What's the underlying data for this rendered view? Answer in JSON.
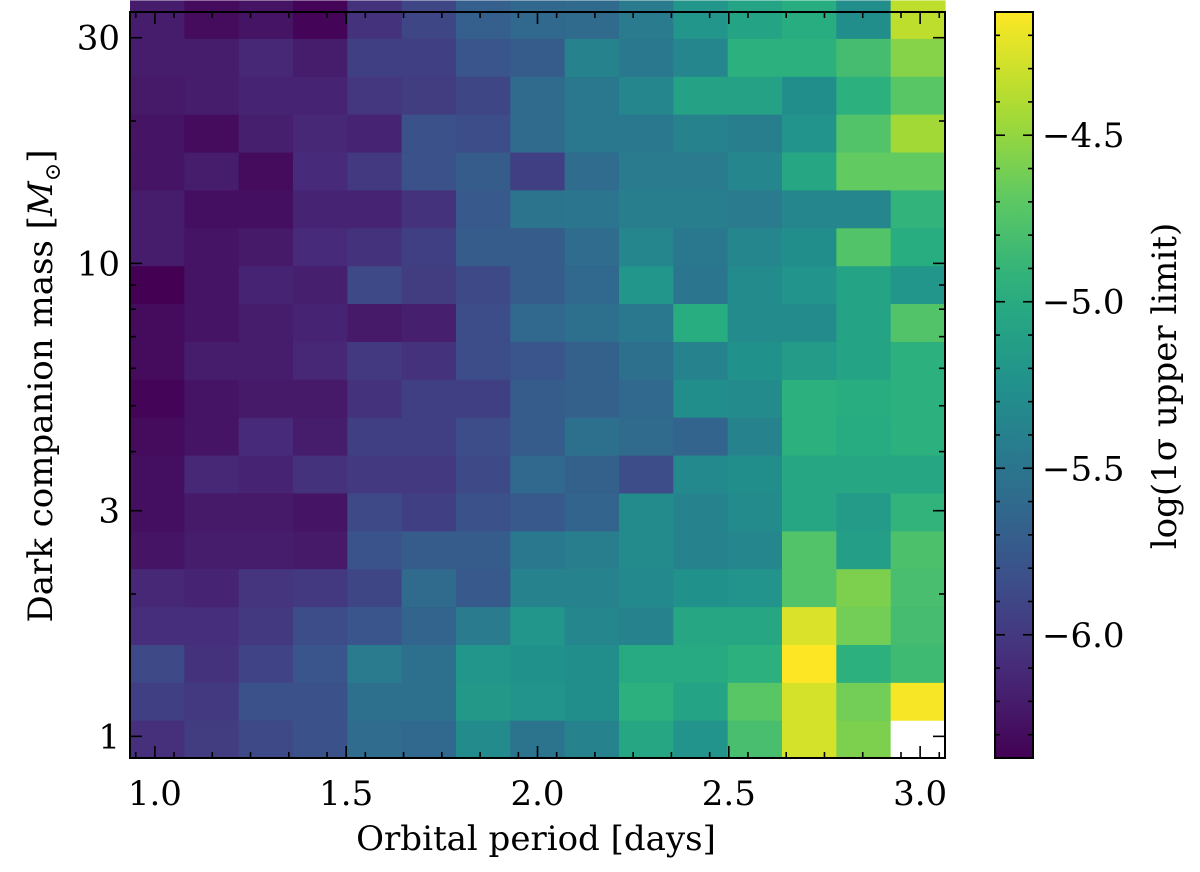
{
  "chart_data": {
    "type": "heatmap",
    "xlabel": "Orbital period [days]",
    "ylabel": "Dark companion mass [",
    "ylabel_symbol": "M",
    "ylabel_subscript": "⊙",
    "ylabel_suffix": "]",
    "colorbar_label": "log(1σ upper limit)",
    "colormap": "viridis",
    "x_scale": "linear",
    "y_scale": "log",
    "xlim": [
      0.935,
      3.065
    ],
    "ylim": [
      0.9,
      34
    ],
    "x_ticks": [
      {
        "value": 1.0,
        "label": "1.0"
      },
      {
        "value": 1.5,
        "label": "1.5"
      },
      {
        "value": 2.0,
        "label": "2.0"
      },
      {
        "value": 2.5,
        "label": "2.5"
      },
      {
        "value": 3.0,
        "label": "3.0"
      }
    ],
    "y_ticks": [
      {
        "value": 1,
        "label": "1"
      },
      {
        "value": 3,
        "label": "3"
      },
      {
        "value": 10,
        "label": "10"
      },
      {
        "value": 30,
        "label": "30"
      }
    ],
    "colorbar_range": [
      -6.37,
      -4.13
    ],
    "colorbar_ticks": [
      {
        "value": -4.5,
        "label": "−4.5"
      },
      {
        "value": -5.0,
        "label": "−5.0"
      },
      {
        "value": -5.5,
        "label": "−5.5"
      },
      {
        "value": -6.0,
        "label": "−6.0"
      }
    ],
    "x_bin_edges": [
      0.935,
      1.077,
      1.219,
      1.361,
      1.503,
      1.645,
      1.787,
      1.929,
      2.071,
      2.213,
      2.355,
      2.497,
      2.639,
      2.781,
      2.923,
      3.065
    ],
    "y_bin_edges_log10": [
      -0.0458,
      0.0343,
      0.1144,
      0.1945,
      0.2746,
      0.3547,
      0.4347,
      0.5148,
      0.5949,
      0.675,
      0.7551,
      0.8352,
      0.9153,
      0.9954,
      1.0755,
      1.1556,
      1.2356,
      1.3157,
      1.3958,
      1.4759,
      1.556
    ],
    "values_rows_bottom_to_top": [
      [
        -6.07,
        -5.98,
        -5.88,
        -5.82,
        -5.58,
        -5.62,
        -5.3,
        -5.52,
        -5.38,
        -5.05,
        -5.22,
        -4.8,
        -4.27,
        -4.58,
        null
      ],
      [
        -5.95,
        -6.0,
        -5.82,
        -5.82,
        -5.55,
        -5.55,
        -5.18,
        -5.22,
        -5.28,
        -4.95,
        -5.08,
        -4.72,
        -4.27,
        -4.62,
        -4.15
      ],
      [
        -5.88,
        -6.05,
        -5.92,
        -5.78,
        -5.45,
        -5.55,
        -5.2,
        -5.25,
        -5.28,
        -5.02,
        -5.02,
        -4.95,
        -4.13,
        -4.95,
        -4.85
      ],
      [
        -6.08,
        -6.08,
        -6.0,
        -5.85,
        -5.78,
        -5.65,
        -5.45,
        -5.2,
        -5.35,
        -5.38,
        -5.05,
        -5.05,
        -4.25,
        -4.62,
        -4.82
      ],
      [
        -6.12,
        -6.15,
        -6.03,
        -6.0,
        -5.9,
        -5.6,
        -5.75,
        -5.38,
        -5.38,
        -5.32,
        -5.25,
        -5.22,
        -4.75,
        -4.58,
        -4.8
      ],
      [
        -6.25,
        -6.2,
        -6.2,
        -6.22,
        -5.8,
        -5.72,
        -5.72,
        -5.48,
        -5.42,
        -5.3,
        -5.38,
        -5.35,
        -4.75,
        -5.12,
        -4.78
      ],
      [
        -6.28,
        -6.22,
        -6.22,
        -6.25,
        -5.88,
        -5.95,
        -5.82,
        -5.75,
        -5.65,
        -5.3,
        -5.38,
        -5.3,
        -5.05,
        -5.15,
        -4.92
      ],
      [
        -6.28,
        -6.12,
        -6.15,
        -6.05,
        -6.0,
        -6.0,
        -5.88,
        -5.62,
        -5.68,
        -5.85,
        -5.32,
        -5.28,
        -5.05,
        -5.05,
        -5.05
      ],
      [
        -6.3,
        -6.25,
        -6.1,
        -6.2,
        -5.95,
        -5.95,
        -5.85,
        -5.72,
        -5.55,
        -5.6,
        -5.65,
        -5.38,
        -4.95,
        -5.0,
        -4.95
      ],
      [
        -6.35,
        -6.25,
        -6.22,
        -6.22,
        -6.05,
        -5.95,
        -5.95,
        -5.72,
        -5.68,
        -5.62,
        -5.28,
        -5.3,
        -4.95,
        -4.98,
        -4.95
      ],
      [
        -6.3,
        -6.2,
        -6.2,
        -6.12,
        -6.0,
        -6.05,
        -5.85,
        -5.78,
        -5.68,
        -5.55,
        -5.38,
        -5.25,
        -5.15,
        -5.08,
        -4.95
      ],
      [
        -6.3,
        -6.25,
        -6.2,
        -6.15,
        -6.22,
        -6.18,
        -5.85,
        -5.62,
        -5.55,
        -5.48,
        -4.98,
        -5.3,
        -5.3,
        -5.08,
        -4.75
      ],
      [
        -6.38,
        -6.25,
        -6.15,
        -6.18,
        -5.88,
        -5.98,
        -5.88,
        -5.72,
        -5.62,
        -5.2,
        -5.5,
        -5.3,
        -5.22,
        -5.08,
        -5.2
      ],
      [
        -6.2,
        -6.25,
        -6.22,
        -6.1,
        -6.05,
        -5.95,
        -5.72,
        -5.72,
        -5.58,
        -5.35,
        -5.48,
        -5.35,
        -5.28,
        -4.75,
        -4.98
      ],
      [
        -6.2,
        -6.28,
        -6.28,
        -6.15,
        -6.15,
        -6.05,
        -5.75,
        -5.52,
        -5.5,
        -5.42,
        -5.42,
        -5.45,
        -5.35,
        -5.35,
        -4.92
      ],
      [
        -6.25,
        -6.2,
        -6.3,
        -6.1,
        -6.0,
        -5.82,
        -5.72,
        -5.95,
        -5.58,
        -5.45,
        -5.45,
        -5.35,
        -5.05,
        -4.68,
        -4.68
      ],
      [
        -6.25,
        -6.3,
        -6.18,
        -6.12,
        -6.15,
        -5.82,
        -5.85,
        -5.6,
        -5.48,
        -5.48,
        -5.38,
        -5.42,
        -5.22,
        -4.75,
        -4.45
      ],
      [
        -6.22,
        -6.2,
        -6.15,
        -6.15,
        -6.02,
        -5.98,
        -5.9,
        -5.6,
        -5.48,
        -5.35,
        -5.1,
        -5.1,
        -5.28,
        -4.95,
        -4.72
      ],
      [
        -6.2,
        -6.2,
        -6.12,
        -6.2,
        -5.95,
        -5.95,
        -5.78,
        -5.72,
        -5.38,
        -5.48,
        -5.35,
        -4.95,
        -4.95,
        -4.82,
        -4.55
      ],
      [
        -6.2,
        -6.3,
        -6.25,
        -6.35,
        -6.05,
        -5.9,
        -5.7,
        -5.62,
        -5.6,
        -5.45,
        -5.2,
        -5.08,
        -4.98,
        -5.28,
        -4.35
      ]
    ]
  }
}
